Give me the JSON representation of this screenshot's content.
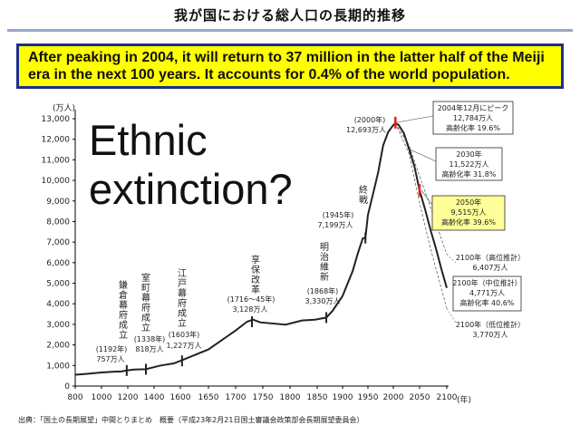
{
  "title": "我が国における総人口の長期的推移",
  "banner": "After peaking in 2004, it will return to 37 million in the latter half of the Meiji era in the next 100 years. It accounts for 0.4% of the world population.",
  "overlay_text": "Ethnic extinction?",
  "source": "出典：「国土の長期展望」中間とりまとめ　概要（平成23年2月21日国土審議会政策部会長期展望委員会）",
  "chart_data": {
    "type": "line",
    "yunit": "(万人)",
    "xunit": "(年)",
    "xlim": [
      800,
      2100
    ],
    "ylim": [
      0,
      13000
    ],
    "xticks": [
      "800",
      "1000",
      "1200",
      "1400",
      "1600",
      "1650",
      "1700",
      "1750",
      "1800",
      "1850",
      "1900",
      "1950",
      "2000",
      "2050",
      "2100"
    ],
    "yticks": [
      "0",
      "1,000",
      "2,000",
      "3,000",
      "4,000",
      "5,000",
      "6,000",
      "7,000",
      "8,000",
      "9,000",
      "10,000",
      "11,000",
      "12,000",
      "13,000"
    ],
    "history": [
      [
        800,
        551
      ],
      [
        900,
        600
      ],
      [
        1000,
        660
      ],
      [
        1100,
        700
      ],
      [
        1150,
        710
      ],
      [
        1192,
        757
      ],
      [
        1250,
        800
      ],
      [
        1338,
        818
      ],
      [
        1450,
        1000
      ],
      [
        1550,
        1100
      ],
      [
        1600,
        1227
      ],
      [
        1650,
        1780
      ],
      [
        1700,
        2700
      ],
      [
        1721,
        3128
      ],
      [
        1732,
        3230
      ],
      [
        1745,
        3100
      ],
      [
        1792,
        2987
      ],
      [
        1822,
        3190
      ],
      [
        1846,
        3230
      ],
      [
        1868,
        3330
      ],
      [
        1880,
        3650
      ],
      [
        1900,
        4380
      ],
      [
        1920,
        5596
      ],
      [
        1930,
        6445
      ],
      [
        1940,
        7193
      ],
      [
        1945,
        7199
      ],
      [
        1950,
        8320
      ],
      [
        1960,
        9342
      ],
      [
        1970,
        10372
      ],
      [
        1980,
        11706
      ],
      [
        1990,
        12361
      ],
      [
        2000,
        12693
      ],
      [
        2004,
        12784
      ]
    ],
    "projection_mid": [
      [
        2004,
        12784
      ],
      [
        2010,
        12700
      ],
      [
        2020,
        12300
      ],
      [
        2030,
        11522
      ],
      [
        2040,
        10700
      ],
      [
        2050,
        9515
      ],
      [
        2060,
        8600
      ],
      [
        2070,
        7600
      ],
      [
        2080,
        6700
      ],
      [
        2090,
        5700
      ],
      [
        2100,
        4771
      ]
    ],
    "projection_high": [
      [
        2004,
        12784
      ],
      [
        2030,
        11700
      ],
      [
        2050,
        10200
      ],
      [
        2070,
        8700
      ],
      [
        2100,
        6407
      ]
    ],
    "projection_low": [
      [
        2004,
        12784
      ],
      [
        2030,
        11300
      ],
      [
        2050,
        8900
      ],
      [
        2070,
        6700
      ],
      [
        2100,
        3770
      ]
    ],
    "annotations": {
      "kamakura": {
        "label": "鎌倉幕府成立",
        "year": "(1192年)",
        "value": "757万人"
      },
      "muromachi": {
        "label": "室町幕府成立",
        "year": "(1338年)",
        "value": "818万人"
      },
      "edo": {
        "label": "江戸幕府成立",
        "year": "(1603年)",
        "value": "1,227万人"
      },
      "kyoho": {
        "label": "享保改革",
        "year": "(1716～45年)",
        "value": "3,128万人"
      },
      "meiji": {
        "label": "明治維新",
        "year": "(1868年)",
        "value": "3,330万人"
      },
      "shusen": {
        "label": "終戦",
        "year": "(1945年)",
        "value": "7,199万人"
      },
      "y2000": {
        "year": "(2000年)",
        "value": "12,693万人"
      },
      "peak": {
        "line1": "2004年12月にピーク",
        "line2": "12,784万人",
        "line3": "高齢化率 19.6%"
      },
      "p2030": {
        "line1": "2030年",
        "line2": "11,522万人",
        "line3": "高齢化率 31.8%"
      },
      "p2050": {
        "line1": "2050年",
        "line2": "9,515万人",
        "line3": "高齢化率 39.6%"
      },
      "high2100": {
        "line1": "2100年（高位推計）",
        "line2": "6,407万人"
      },
      "mid2100": {
        "line1": "2100年（中位推計）",
        "line2": "4,771万人",
        "line3": "高齢化率 40.6%"
      },
      "low2100": {
        "line1": "2100年（低位推計）",
        "line2": "3,770万人"
      }
    },
    "colors": {
      "line": "#222222",
      "axis": "#000000",
      "box_border": "#2a2a2a",
      "highlight_fill": "#ffff99",
      "marker_red": "#e02020",
      "aging_text": "#e02020"
    }
  }
}
